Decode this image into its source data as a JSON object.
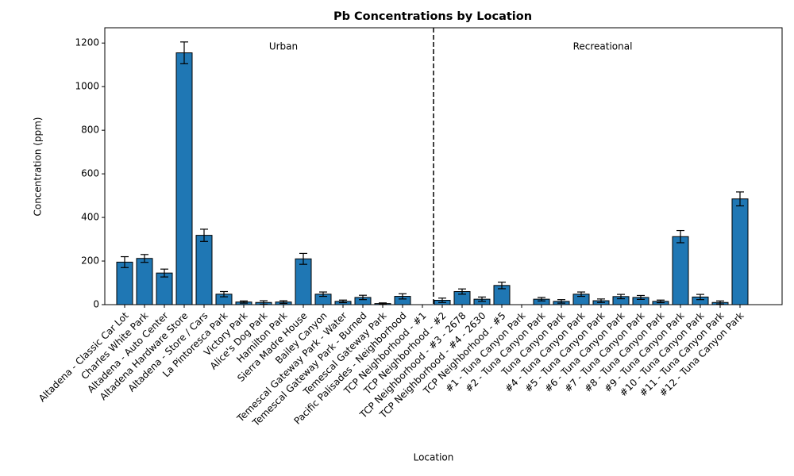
{
  "chart_data": {
    "type": "bar",
    "title": "Pb Concentrations by Location",
    "xlabel": "Location",
    "ylabel": "Concentration (ppm)",
    "annotations": [
      "Urban",
      "Recreational"
    ],
    "categories": [
      "Altadena - Classic Car Lot",
      "Charles White Park",
      "Altadena - Auto Center",
      "Altadena Hardware Store",
      "Altadena - Store / Cars",
      "La Pintoresca Park",
      "Victory Park",
      "Alice's Dog Park",
      "Hamilton Park",
      "Sierra Madre House",
      "Bailey Canyon",
      "Temescal Gateway Park - Water",
      "Temescal Gateway Park - Burned",
      "Temescal Gateway Park",
      "Pacific Palisades - Neighborhood",
      "TCP Neighborhood - #1",
      "TCP Neighborhood - #2",
      "TCP Neighborhood - #3 - 2678",
      "TCP Neighborhood - #4 - 2630",
      "TCP Neighborhood - #5",
      "#1 - Tuna Canyon Park",
      "#2 - Tuna Canyon Park",
      "Tuna Canyon Park",
      "#4 - Tuna Canyon Park",
      "#5 - Tuna Canyon Park",
      "#6 - Tuna Canyon Park",
      "#7 - Tuna Canyon Park",
      "#8 - Tuna Canyon Park",
      "#9 - Tuna Canyon Park",
      "#10 - Tuna Canyon Park",
      "#11 - Tuna Canyon Park",
      "#12 - Tuna Canyon Park"
    ],
    "values": [
      195,
      212,
      145,
      1155,
      318,
      48,
      12,
      10,
      12,
      210,
      48,
      15,
      33,
      5,
      38,
      null,
      20,
      60,
      25,
      88,
      null,
      25,
      15,
      48,
      18,
      37,
      33,
      15,
      312,
      35,
      10,
      485
    ],
    "errors": [
      25,
      18,
      18,
      50,
      28,
      12,
      5,
      8,
      6,
      25,
      10,
      6,
      10,
      3,
      12,
      null,
      10,
      12,
      10,
      15,
      null,
      8,
      8,
      10,
      8,
      10,
      9,
      6,
      28,
      12,
      7,
      32
    ],
    "color": "#1f77b4",
    "ylim": [
      0,
      1270
    ],
    "yticks": [
      0,
      200,
      400,
      600,
      800,
      1000,
      1200
    ]
  }
}
